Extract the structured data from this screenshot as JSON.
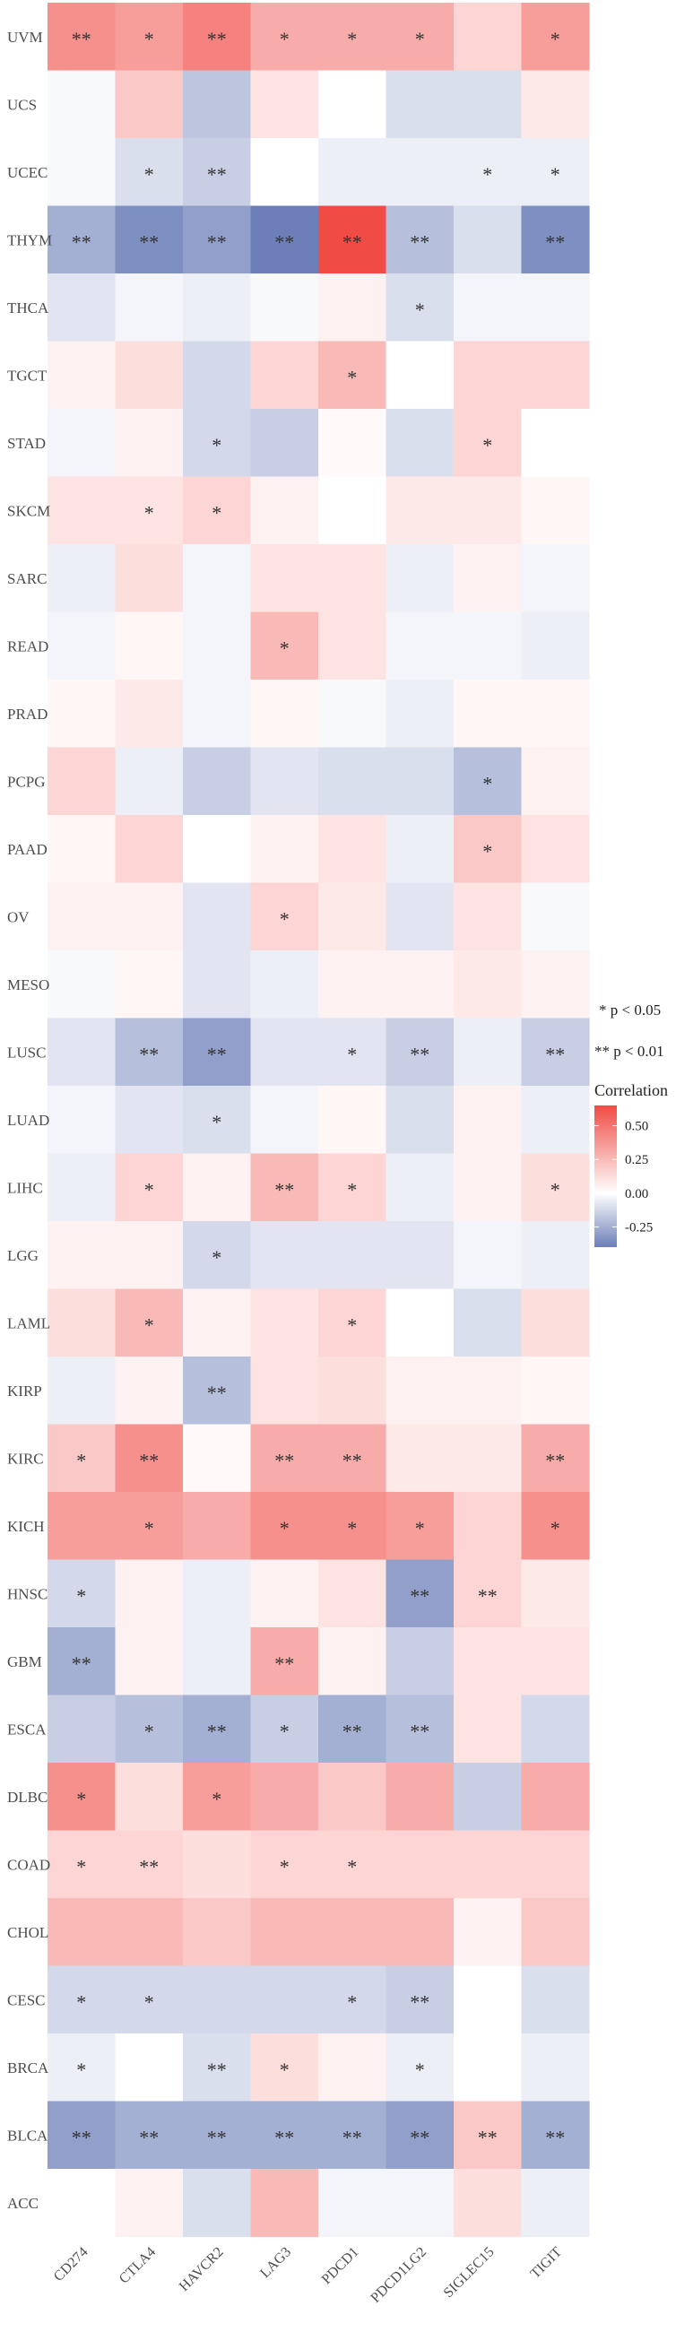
{
  "chart_data": {
    "type": "heatmap",
    "title": "",
    "xlabel": "",
    "ylabel": "",
    "x_categories": [
      "CD274",
      "CTLA4",
      "HAVCR2",
      "LAG3",
      "PDCD1",
      "PDCD1LG2",
      "SIGLEC15",
      "TIGIT"
    ],
    "y_categories": [
      "UVM",
      "UCS",
      "UCEC",
      "THYM",
      "THCA",
      "TGCT",
      "STAD",
      "SKCM",
      "SARC",
      "READ",
      "PRAD",
      "PCPG",
      "PAAD",
      "OV",
      "MESO",
      "LUSC",
      "LUAD",
      "LIHC",
      "LGG",
      "LAML",
      "KIRP",
      "KIRC",
      "KICH",
      "HNSC",
      "GBM",
      "ESCA",
      "DLBC",
      "COAD",
      "CHOL",
      "CESC",
      "BRCA",
      "BLCA",
      "ACC"
    ],
    "values": [
      [
        0.4,
        0.35,
        0.45,
        0.3,
        0.3,
        0.3,
        0.15,
        0.35
      ],
      [
        -0.02,
        0.2,
        -0.18,
        0.1,
        0.0,
        -0.1,
        -0.1,
        0.08
      ],
      [
        -0.02,
        -0.1,
        -0.15,
        0.0,
        -0.05,
        -0.05,
        -0.05,
        -0.05
      ],
      [
        -0.25,
        -0.35,
        -0.3,
        -0.4,
        0.65,
        -0.2,
        -0.1,
        -0.35
      ],
      [
        -0.08,
        -0.03,
        -0.05,
        -0.02,
        0.05,
        -0.1,
        -0.03,
        -0.03
      ],
      [
        0.05,
        0.12,
        -0.12,
        0.15,
        0.25,
        0.0,
        0.15,
        0.15
      ],
      [
        -0.03,
        0.05,
        -0.12,
        -0.15,
        0.02,
        -0.1,
        0.15,
        0.0
      ],
      [
        0.1,
        0.1,
        0.15,
        0.05,
        0.0,
        0.08,
        0.08,
        0.03
      ],
      [
        -0.05,
        0.12,
        -0.03,
        0.1,
        0.1,
        -0.05,
        0.05,
        -0.03
      ],
      [
        -0.03,
        0.03,
        -0.03,
        0.25,
        0.1,
        -0.03,
        -0.03,
        -0.05
      ],
      [
        0.03,
        0.08,
        -0.03,
        0.03,
        -0.02,
        -0.05,
        0.03,
        0.03
      ],
      [
        0.15,
        -0.05,
        -0.15,
        -0.08,
        -0.1,
        -0.1,
        -0.2,
        0.05
      ],
      [
        0.03,
        0.15,
        0.0,
        0.05,
        0.1,
        -0.05,
        0.2,
        0.1
      ],
      [
        0.05,
        0.05,
        -0.08,
        0.15,
        0.08,
        -0.08,
        0.1,
        -0.02
      ],
      [
        -0.02,
        0.03,
        -0.08,
        -0.05,
        0.05,
        0.05,
        0.08,
        0.05
      ],
      [
        -0.08,
        -0.2,
        -0.3,
        -0.08,
        -0.08,
        -0.15,
        -0.05,
        -0.15
      ],
      [
        -0.03,
        -0.08,
        -0.1,
        -0.03,
        0.03,
        -0.1,
        0.05,
        -0.05
      ],
      [
        -0.05,
        0.15,
        0.05,
        0.25,
        0.15,
        -0.05,
        0.05,
        0.12
      ],
      [
        0.05,
        0.05,
        -0.12,
        -0.08,
        -0.08,
        -0.08,
        -0.03,
        -0.05
      ],
      [
        0.12,
        0.25,
        0.05,
        0.1,
        0.15,
        0.0,
        -0.1,
        0.12
      ],
      [
        -0.05,
        0.05,
        -0.2,
        0.1,
        0.12,
        0.05,
        0.05,
        0.03
      ],
      [
        0.2,
        0.4,
        0.02,
        0.3,
        0.3,
        0.08,
        0.08,
        0.3
      ],
      [
        0.35,
        0.35,
        0.3,
        0.4,
        0.4,
        0.35,
        0.15,
        0.4
      ],
      [
        -0.12,
        0.05,
        -0.05,
        0.05,
        0.1,
        -0.3,
        0.15,
        0.08
      ],
      [
        -0.25,
        0.05,
        -0.05,
        0.3,
        0.05,
        -0.15,
        0.1,
        0.1
      ],
      [
        -0.15,
        -0.2,
        -0.25,
        -0.15,
        -0.25,
        -0.2,
        0.1,
        -0.12
      ],
      [
        0.4,
        0.12,
        0.35,
        0.3,
        0.2,
        0.3,
        -0.15,
        0.3
      ],
      [
        0.15,
        0.15,
        0.12,
        0.15,
        0.15,
        0.15,
        0.15,
        0.15
      ],
      [
        0.25,
        0.25,
        0.2,
        0.25,
        0.25,
        0.25,
        0.05,
        0.2
      ],
      [
        -0.12,
        -0.12,
        -0.12,
        -0.12,
        -0.12,
        -0.15,
        0.0,
        -0.1
      ],
      [
        -0.05,
        0.0,
        -0.1,
        0.12,
        0.05,
        -0.05,
        0.0,
        -0.05
      ],
      [
        -0.3,
        -0.25,
        -0.25,
        -0.25,
        -0.25,
        -0.3,
        0.2,
        -0.25
      ],
      [
        0.0,
        0.05,
        -0.1,
        0.25,
        -0.03,
        -0.03,
        0.12,
        -0.05
      ]
    ],
    "significance": [
      [
        "**",
        "*",
        "**",
        "*",
        "*",
        "*",
        "",
        "*"
      ],
      [
        "",
        "",
        "",
        "",
        "",
        "",
        "",
        ""
      ],
      [
        "",
        "*",
        "**",
        "",
        "",
        "",
        "*",
        "*"
      ],
      [
        "**",
        "**",
        "**",
        "**",
        "**",
        "**",
        "",
        "**"
      ],
      [
        "",
        "",
        "",
        "",
        "",
        "*",
        "",
        ""
      ],
      [
        "",
        "",
        "",
        "",
        "*",
        "",
        "",
        ""
      ],
      [
        "",
        "",
        "*",
        "",
        "",
        "",
        "*",
        ""
      ],
      [
        "",
        "*",
        "*",
        "",
        "",
        "",
        "",
        ""
      ],
      [
        "",
        "",
        "",
        "",
        "",
        "",
        "",
        ""
      ],
      [
        "",
        "",
        "",
        "*",
        "",
        "",
        "",
        ""
      ],
      [
        "",
        "",
        "",
        "",
        "",
        "",
        "",
        ""
      ],
      [
        "",
        "",
        "",
        "",
        "",
        "",
        "*",
        ""
      ],
      [
        "",
        "",
        "",
        "",
        "",
        "",
        "*",
        ""
      ],
      [
        "",
        "",
        "",
        "*",
        "",
        "",
        "",
        ""
      ],
      [
        "",
        "",
        "",
        "",
        "",
        "",
        "",
        ""
      ],
      [
        "",
        "**",
        "**",
        "",
        "*",
        "**",
        "",
        "**"
      ],
      [
        "",
        "",
        "*",
        "",
        "",
        "",
        "",
        ""
      ],
      [
        "",
        "*",
        "",
        "**",
        "*",
        "",
        "",
        "*"
      ],
      [
        "",
        "",
        "*",
        "",
        "",
        "",
        "",
        ""
      ],
      [
        "",
        "*",
        "",
        "",
        "*",
        "",
        "",
        ""
      ],
      [
        "",
        "",
        "**",
        "",
        "",
        "",
        "",
        ""
      ],
      [
        "*",
        "**",
        "",
        "**",
        "**",
        "",
        "",
        "**"
      ],
      [
        "",
        "*",
        "",
        "*",
        "*",
        "*",
        "",
        "*"
      ],
      [
        "*",
        "",
        "",
        "",
        "",
        "**",
        "**",
        ""
      ],
      [
        "**",
        "",
        "",
        "**",
        "",
        "",
        "",
        ""
      ],
      [
        "",
        "*",
        "**",
        "*",
        "**",
        "**",
        "",
        ""
      ],
      [
        "*",
        "",
        "*",
        "",
        "",
        "",
        "",
        ""
      ],
      [
        "*",
        "**",
        "",
        "*",
        "*",
        "",
        "",
        ""
      ],
      [
        "",
        "",
        "",
        "",
        "",
        "",
        "",
        ""
      ],
      [
        "*",
        "*",
        "",
        "",
        "*",
        "**",
        "",
        ""
      ],
      [
        "*",
        "",
        "**",
        "*",
        "",
        "*",
        "",
        ""
      ],
      [
        "**",
        "**",
        "**",
        "**",
        "**",
        "**",
        "**",
        "**"
      ],
      [
        "",
        "",
        "",
        "",
        "",
        "",
        "",
        ""
      ]
    ],
    "color_scale": {
      "low_color": "#6c7fb8",
      "mid_color": "#ffffff",
      "high_color": "#f04b45",
      "range": [
        -0.4,
        0.65
      ],
      "ticks": [
        0.5,
        0.25,
        0.0,
        -0.25
      ],
      "tick_labels": [
        "0.50",
        "0.25",
        "0.00",
        "-0.25"
      ]
    },
    "legend": {
      "placement": "right",
      "sig_labels": [
        "* p < 0.05",
        "** p < 0.01"
      ],
      "title": "Correlation"
    },
    "grid": false
  }
}
